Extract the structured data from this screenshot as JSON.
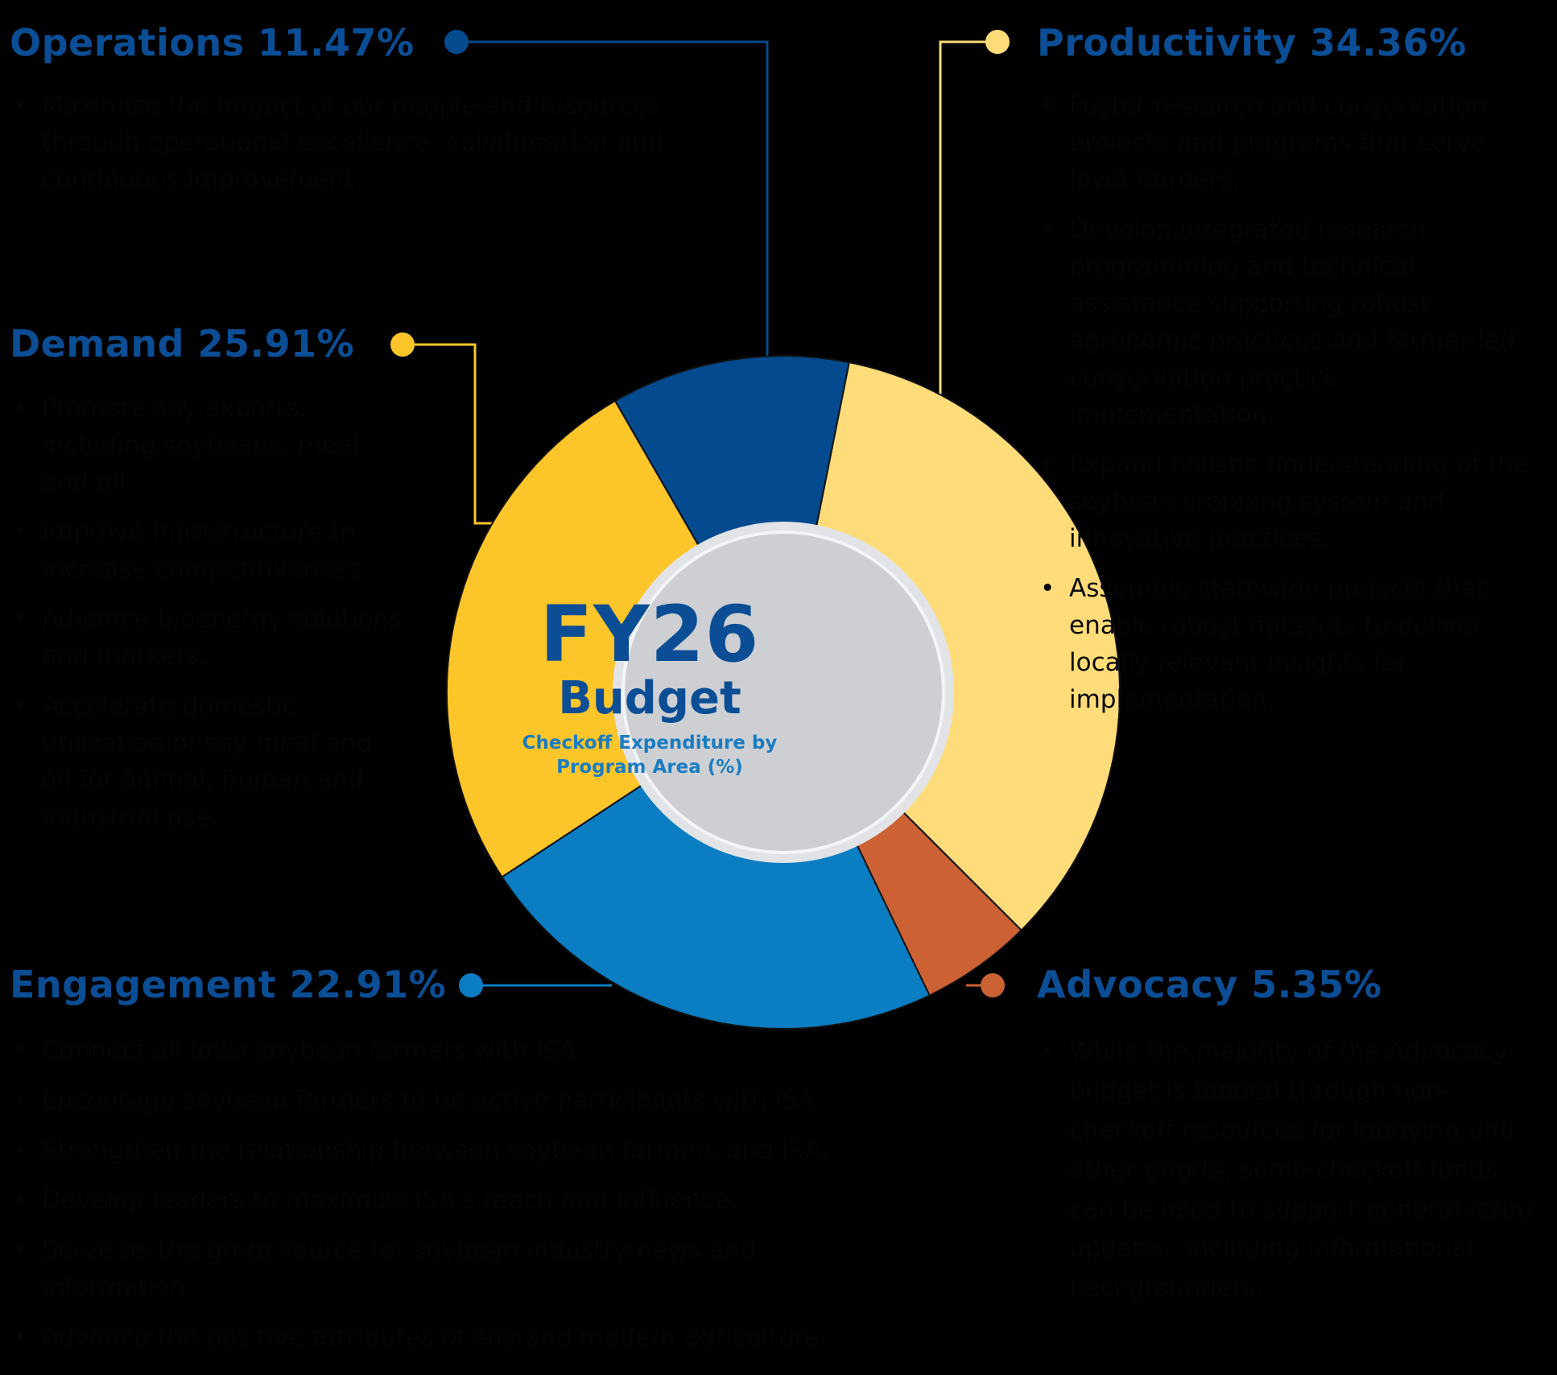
{
  "chart_data": {
    "type": "pie",
    "center": {
      "title": "FY26",
      "subtitle": "Budget",
      "caption": "Checkoff Expenditure by Program Area (%)"
    },
    "slices": [
      {
        "label": "Operations",
        "display": "Operations 11.47%",
        "value": 11.47,
        "color": "#034a8e"
      },
      {
        "label": "Productivity",
        "display": "Productivity 34.36%",
        "value": 34.36,
        "color": "#fddc79"
      },
      {
        "label": "Advocacy",
        "display": "Advocacy 5.35%",
        "value": 5.35,
        "color": "#cc6133"
      },
      {
        "label": "Engagement",
        "display": "Engagement 22.91%",
        "value": 22.91,
        "color": "#0a7dc3"
      },
      {
        "label": "Demand",
        "display": "Demand 25.91%",
        "value": 25.91,
        "color": "#fcc52a"
      }
    ]
  },
  "sections": {
    "operations": {
      "bullets": [
        "Maximize the impact of our people and resources through operational excellence, collaboration and continuous improvement."
      ]
    },
    "productivity": {
      "bullets": [
        "Foster research and conservation projects and programs that serve Iowa farmers.",
        "Develop integrated research programming and technical assistance supporting robust agronomic practices and farmer-led conservation practice implementation.",
        "Expand holistic understanding of the soybean cropping system and innovative practices.",
        "Assemble statewide projects that enable robust datasets to deliver locally relevant insights for implementation."
      ]
    },
    "demand": {
      "bullets": [
        "Promote soy exports, including soybeans, meal and oil.",
        "Improve infrastructure to increase competitiveness.",
        "Advance bioenergy solutions and markets.",
        "Accelerate domestic utilization of soy meal and oil for animal, human and industrial use."
      ]
    },
    "engagement": {
      "bullets": [
        "Connect all Iowa soybean farmers with ISA.",
        "Encourage soybean farmers to be active participants with ISA.",
        "Strengthen the relationship between soybean farmers and ISA.",
        "Develop leaders to maximize ISA's reach and influence.",
        "Serve as the go-to source for soybean industry news and information.",
        "Advance the positive attributes of soy and modern agriculture."
      ]
    },
    "advocacy": {
      "bullets": [
        "While the majority of the Advocacy budget is funded through non-checkoff resources for lobbying and other efforts, some checkoff funds can be used to support general issue updates, including informational backgrounders."
      ]
    }
  }
}
